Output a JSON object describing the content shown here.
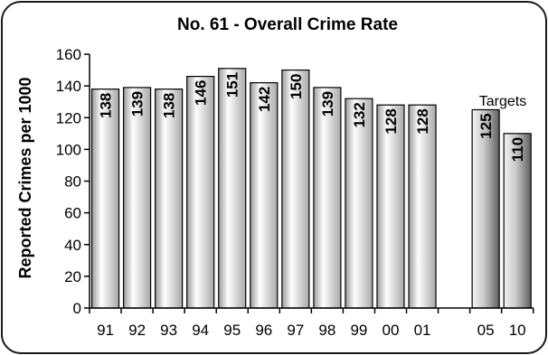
{
  "chart_data": {
    "type": "bar",
    "title": "No. 61 - Overall Crime Rate",
    "ylabel": "Reported Crimes per 1000",
    "xlabel": "",
    "categories": [
      "91",
      "92",
      "93",
      "94",
      "95",
      "96",
      "97",
      "98",
      "99",
      "00",
      "01",
      "05",
      "10"
    ],
    "values": [
      138,
      139,
      138,
      146,
      151,
      142,
      150,
      139,
      132,
      128,
      128,
      125,
      110
    ],
    "data_labels": [
      "138",
      "139",
      "138",
      "146",
      "151",
      "142",
      "150",
      "139",
      "132",
      "128",
      "128",
      "125",
      "110"
    ],
    "target_categories": [
      "05",
      "10"
    ],
    "annotation": "Targets",
    "ylim": [
      0,
      160
    ],
    "yticks": [
      0,
      20,
      40,
      60,
      80,
      100,
      120,
      140,
      160
    ],
    "ytick_labels": [
      "0",
      "20",
      "40",
      "60",
      "80",
      "100",
      "120",
      "140",
      "160"
    ],
    "grid": false,
    "legend": "none",
    "colors": {
      "bar_light": "#ffffff",
      "bar_mid": "#c4c4c4",
      "bar_dark": "#8a8a8a",
      "target_light": "#f2f2f2",
      "target_dark": "#6e6e6e",
      "outline": "#000000"
    }
  }
}
